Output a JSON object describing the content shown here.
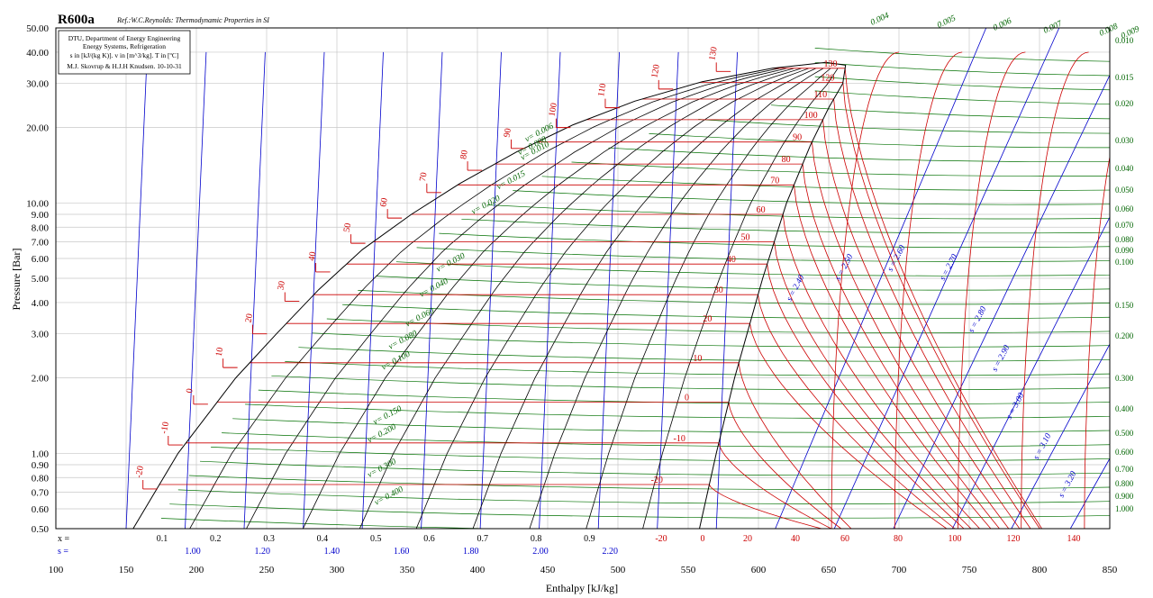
{
  "chart_data": {
    "type": "line",
    "title": "R600a",
    "reference": "Ref.:W.C.Reynolds: Thermodynamic Properties in SI",
    "info_box": [
      "DTU, Department of Energy Engineering",
      "Energy Systems, Refrigeration",
      "s in [kJ/(kg K)]. v in [m^3/kg]. T in [ºC]",
      "M.J. Skovrup & H.J.H Knudsen. 10-10-31"
    ],
    "xlabel": "Enthalpy [kJ/kg]",
    "ylabel": "Pressure [Bar]",
    "x_range": [
      100,
      850
    ],
    "y_range": [
      0.5,
      50
    ],
    "y_scale": "log",
    "grid": true,
    "x_ticks": [
      "100",
      "150",
      "200",
      "250",
      "300",
      "350",
      "400",
      "450",
      "500",
      "550",
      "600",
      "650",
      "700",
      "750",
      "800",
      "850"
    ],
    "y_ticks": [
      "0.50",
      "0.60",
      "0.70",
      "0.80",
      "0.90",
      "1.00",
      "2.00",
      "3.00",
      "4.00",
      "5.00",
      "6.00",
      "7.00",
      "8.00",
      "9.00",
      "10.00",
      "20.00",
      "30.00",
      "40.00",
      "50.00"
    ],
    "right_ticks": [
      "0.010",
      "0.015",
      "0.020",
      "0.030",
      "0.040",
      "0.050",
      "0.060",
      "0.070",
      "0.080",
      "0.090",
      "0.100",
      "0.150",
      "0.200",
      "0.300",
      "0.400",
      "0.500",
      "0.600",
      "0.700",
      "0.800",
      "0.900",
      "1.000"
    ],
    "bottom_rows": {
      "x_label": "x =",
      "s_label": "s =",
      "x_values": [
        "0.1",
        "0.2",
        "0.3",
        "0.4",
        "0.5",
        "0.6",
        "0.7",
        "0.8",
        "0.9"
      ],
      "s_values": [
        "1.00",
        "1.20",
        "1.40",
        "1.60",
        "1.80",
        "2.00",
        "2.20"
      ],
      "t_values": [
        "-20",
        "0",
        "20",
        "40",
        "60",
        "80",
        "100",
        "120",
        "140"
      ]
    },
    "saturation_liquid": [
      [
        155,
        0.5
      ],
      [
        187,
        1.0
      ],
      [
        228,
        2.0
      ],
      [
        257,
        3.0
      ],
      [
        287,
        4.5
      ],
      [
        318,
        6.5
      ],
      [
        353,
        9.0
      ],
      [
        388,
        12
      ],
      [
        428,
        16
      ],
      [
        468,
        20.5
      ],
      [
        512,
        25.5
      ],
      [
        560,
        30.5
      ],
      [
        610,
        34.5
      ],
      [
        648,
        36.4
      ]
    ],
    "saturation_vapor": [
      [
        648,
        36.4
      ],
      [
        662,
        35.5
      ],
      [
        660,
        30
      ],
      [
        650,
        24
      ],
      [
        637,
        17
      ],
      [
        620,
        10
      ],
      [
        603,
        5
      ],
      [
        583,
        2
      ],
      [
        570,
        1
      ],
      [
        558,
        0.5
      ]
    ],
    "critical_point": [
      662,
      36.4
    ],
    "sat_temp_labels": [
      {
        "t": "-20",
        "h": 162,
        "p": 0.72
      },
      {
        "t": "-10",
        "h": 180,
        "p": 1.08
      },
      {
        "t": "0",
        "h": 198,
        "p": 1.57
      },
      {
        "t": "10",
        "h": 219,
        "p": 2.2
      },
      {
        "t": "20",
        "h": 240,
        "p": 3.0
      },
      {
        "t": "30",
        "h": 263,
        "p": 4.05
      },
      {
        "t": "40",
        "h": 285,
        "p": 5.3
      },
      {
        "t": "50",
        "h": 310,
        "p": 6.9
      },
      {
        "t": "60",
        "h": 336,
        "p": 8.7
      },
      {
        "t": "70",
        "h": 364,
        "p": 11
      },
      {
        "t": "80",
        "h": 393,
        "p": 13.5
      },
      {
        "t": "90",
        "h": 424,
        "p": 16.5
      },
      {
        "t": "100",
        "h": 456,
        "p": 20
      },
      {
        "t": "110",
        "h": 491,
        "p": 24
      },
      {
        "t": "120",
        "h": 529,
        "p": 28.5
      },
      {
        "t": "130",
        "h": 570,
        "p": 33.5
      }
    ],
    "isotherm_labels": [
      {
        "t": "-20",
        "h": 535,
        "p": 0.75
      },
      {
        "t": "-10",
        "h": 551,
        "p": 1.1
      },
      {
        "t": "0",
        "h": 559,
        "p": 1.6
      },
      {
        "t": "10",
        "h": 565,
        "p": 2.3
      },
      {
        "t": "20",
        "h": 572,
        "p": 3.3
      },
      {
        "t": "30",
        "h": 580,
        "p": 4.3
      },
      {
        "t": "40",
        "h": 589,
        "p": 5.7
      },
      {
        "t": "50",
        "h": 599,
        "p": 7.0
      },
      {
        "t": "60",
        "h": 610,
        "p": 9.0
      },
      {
        "t": "70",
        "h": 620,
        "p": 11.8
      },
      {
        "t": "80",
        "h": 628,
        "p": 14.3
      },
      {
        "t": "90",
        "h": 636,
        "p": 17.5
      },
      {
        "t": "100",
        "h": 644,
        "p": 21.5
      },
      {
        "t": "110",
        "h": 651,
        "p": 26
      },
      {
        "t": "120",
        "h": 656,
        "p": 30.3
      },
      {
        "t": "130",
        "h": 658,
        "p": 34.5
      }
    ],
    "isochore_labels": [
      {
        "v": "v= 0.006",
        "h": 435,
        "p": 17.5
      },
      {
        "v": "v= 0.008",
        "h": 430,
        "p": 15.5
      },
      {
        "v": "v= 0.010",
        "h": 432,
        "p": 14.8
      },
      {
        "v": "v= 0.015",
        "h": 415,
        "p": 11.3
      },
      {
        "v": "v= 0.020",
        "h": 397,
        "p": 9.0
      },
      {
        "v": "v= 0.030",
        "h": 372,
        "p": 5.3
      },
      {
        "v": "v= 0.040",
        "h": 360,
        "p": 4.2
      },
      {
        "v": "v= 0.060",
        "h": 350,
        "p": 3.2
      },
      {
        "v": "v= 0.080",
        "h": 338,
        "p": 2.6
      },
      {
        "v": "v= 0.100",
        "h": 333,
        "p": 2.15
      },
      {
        "v": "v= 0.150",
        "h": 327,
        "p": 1.3
      },
      {
        "v": "v= 0.200",
        "h": 323,
        "p": 1.1
      },
      {
        "v": "v= 0.300",
        "h": 323,
        "p": 0.8
      },
      {
        "v": "v= 0.400",
        "h": 328,
        "p": 0.62
      }
    ],
    "isochore_top_labels": [
      "0.004",
      "0.005",
      "0.006",
      "0.007",
      "0.008",
      "0.009"
    ],
    "isentrope_labels": [
      "s = 2.40",
      "s = 2.50",
      "s = 2.60",
      "s = 2.70",
      "s = 2.80",
      "s = 2.90",
      "s = 3.00",
      "s = 3.10",
      "s = 3.20"
    ]
  },
  "colors": {
    "grid": "#c8c8c8",
    "saturation": "#000000",
    "isotherm": "#cc0000",
    "isochore": "#007000",
    "isentrope": "#0000cc",
    "quality": "#000000"
  }
}
